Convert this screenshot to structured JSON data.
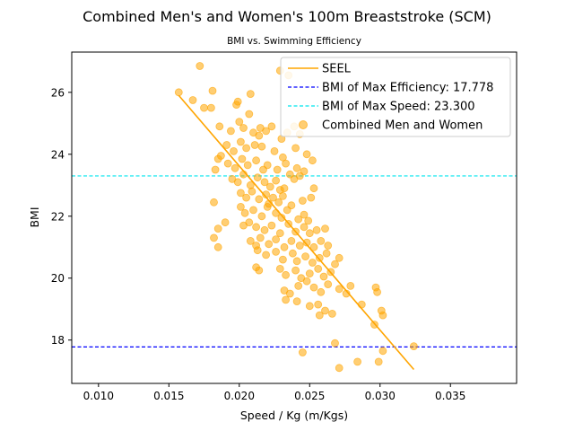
{
  "chart_data": {
    "type": "scatter",
    "title": "Combined Men's and Women's 100m Breaststroke (SCM)",
    "subtitle": "BMI vs. Swimming Efficiency",
    "xlabel": "Speed / Kg (m/Kgs)",
    "ylabel": "BMI",
    "xlim": [
      0.0081,
      0.0397
    ],
    "ylim": [
      16.6,
      27.3
    ],
    "xticks": [
      "0.010",
      "0.015",
      "0.020",
      "0.025",
      "0.030",
      "0.035"
    ],
    "yticks": [
      "18",
      "20",
      "22",
      "24",
      "26"
    ],
    "grid": false,
    "legend_position": "top-right",
    "colors": {
      "points": "#FFA500",
      "seel": "#FFA500",
      "max_efficiency": "#0000FF",
      "max_speed": "#00E5EE"
    },
    "legend": [
      {
        "label": "SEEL",
        "kind": "line",
        "color": "#FFA500",
        "dash": "solid"
      },
      {
        "label": "BMI of Max Efficiency: 17.778",
        "kind": "line",
        "color": "#0000FF",
        "dash": "dashed"
      },
      {
        "label": "BMI of Max Speed: 23.300",
        "kind": "line",
        "color": "#00E5EE",
        "dash": "dashed"
      },
      {
        "label": "Combined Men and Women",
        "kind": "marker",
        "color": "#FFA500"
      }
    ],
    "hlines": [
      {
        "name": "BMI of Max Efficiency",
        "y": 17.778,
        "color": "#0000FF"
      },
      {
        "name": "BMI of Max Speed",
        "y": 23.3,
        "color": "#00E5EE"
      }
    ],
    "seel_line": {
      "x": [
        0.0157,
        0.0324
      ],
      "y": [
        25.9,
        17.05
      ]
    },
    "series": [
      {
        "name": "Combined Men and Women",
        "points": [
          [
            0.0157,
            26.0
          ],
          [
            0.0172,
            26.85
          ],
          [
            0.0167,
            25.75
          ],
          [
            0.0175,
            25.5
          ],
          [
            0.0181,
            26.05
          ],
          [
            0.018,
            25.5
          ],
          [
            0.0198,
            25.6
          ],
          [
            0.0208,
            25.95
          ],
          [
            0.0207,
            25.3
          ],
          [
            0.0199,
            25.7
          ],
          [
            0.0229,
            26.7
          ],
          [
            0.0235,
            26.55
          ],
          [
            0.0186,
            24.9
          ],
          [
            0.0194,
            24.75
          ],
          [
            0.02,
            25.05
          ],
          [
            0.0203,
            24.85
          ],
          [
            0.021,
            24.7
          ],
          [
            0.0214,
            24.6
          ],
          [
            0.0219,
            24.75
          ],
          [
            0.0215,
            24.85
          ],
          [
            0.0223,
            24.9
          ],
          [
            0.023,
            24.5
          ],
          [
            0.0234,
            24.7
          ],
          [
            0.0239,
            24.9
          ],
          [
            0.0243,
            24.65
          ],
          [
            0.0191,
            24.3
          ],
          [
            0.0196,
            24.1
          ],
          [
            0.0201,
            24.4
          ],
          [
            0.0205,
            24.2
          ],
          [
            0.0211,
            24.3
          ],
          [
            0.0216,
            24.25
          ],
          [
            0.0225,
            24.1
          ],
          [
            0.0231,
            23.9
          ],
          [
            0.024,
            24.2
          ],
          [
            0.0248,
            24.0
          ],
          [
            0.0252,
            23.8
          ],
          [
            0.0185,
            23.85
          ],
          [
            0.0187,
            23.95
          ],
          [
            0.0192,
            23.7
          ],
          [
            0.0197,
            23.55
          ],
          [
            0.0202,
            23.85
          ],
          [
            0.0206,
            23.65
          ],
          [
            0.0212,
            23.8
          ],
          [
            0.0217,
            23.5
          ],
          [
            0.022,
            23.65
          ],
          [
            0.0227,
            23.5
          ],
          [
            0.0233,
            23.7
          ],
          [
            0.0236,
            23.35
          ],
          [
            0.0241,
            23.55
          ],
          [
            0.0246,
            23.45
          ],
          [
            0.0183,
            23.5
          ],
          [
            0.0195,
            23.2
          ],
          [
            0.0199,
            23.1
          ],
          [
            0.0203,
            23.35
          ],
          [
            0.0208,
            23.0
          ],
          [
            0.0213,
            23.25
          ],
          [
            0.0218,
            23.1
          ],
          [
            0.0222,
            22.95
          ],
          [
            0.0226,
            23.15
          ],
          [
            0.0229,
            22.85
          ],
          [
            0.0232,
            22.9
          ],
          [
            0.0239,
            23.2
          ],
          [
            0.0243,
            23.3
          ],
          [
            0.0253,
            22.9
          ],
          [
            0.0201,
            22.75
          ],
          [
            0.0205,
            22.6
          ],
          [
            0.0209,
            22.8
          ],
          [
            0.0214,
            22.55
          ],
          [
            0.0219,
            22.7
          ],
          [
            0.0221,
            22.4
          ],
          [
            0.0224,
            22.6
          ],
          [
            0.0228,
            22.45
          ],
          [
            0.0231,
            22.65
          ],
          [
            0.0237,
            22.35
          ],
          [
            0.0245,
            22.5
          ],
          [
            0.0251,
            22.6
          ],
          [
            0.0182,
            22.45
          ],
          [
            0.0201,
            22.3
          ],
          [
            0.0204,
            22.1
          ],
          [
            0.021,
            22.2
          ],
          [
            0.0216,
            22.0
          ],
          [
            0.022,
            22.3
          ],
          [
            0.0226,
            22.1
          ],
          [
            0.023,
            21.95
          ],
          [
            0.0234,
            22.2
          ],
          [
            0.0242,
            21.9
          ],
          [
            0.0246,
            22.05
          ],
          [
            0.0249,
            21.85
          ],
          [
            0.019,
            21.8
          ],
          [
            0.0185,
            21.6
          ],
          [
            0.0203,
            21.7
          ],
          [
            0.0207,
            21.8
          ],
          [
            0.0212,
            21.65
          ],
          [
            0.0218,
            21.55
          ],
          [
            0.0223,
            21.7
          ],
          [
            0.0229,
            21.45
          ],
          [
            0.0235,
            21.75
          ],
          [
            0.024,
            21.5
          ],
          [
            0.0246,
            21.65
          ],
          [
            0.025,
            21.45
          ],
          [
            0.0255,
            21.55
          ],
          [
            0.0261,
            21.6
          ],
          [
            0.0208,
            21.2
          ],
          [
            0.0212,
            21.05
          ],
          [
            0.0215,
            21.3
          ],
          [
            0.0221,
            21.1
          ],
          [
            0.0226,
            21.25
          ],
          [
            0.0232,
            21.0
          ],
          [
            0.0237,
            21.2
          ],
          [
            0.0243,
            21.05
          ],
          [
            0.0248,
            21.15
          ],
          [
            0.0253,
            21.0
          ],
          [
            0.0258,
            21.2
          ],
          [
            0.0263,
            21.05
          ],
          [
            0.0182,
            21.3
          ],
          [
            0.0185,
            21.0
          ],
          [
            0.0213,
            20.9
          ],
          [
            0.0219,
            20.75
          ],
          [
            0.0226,
            20.85
          ],
          [
            0.0231,
            20.6
          ],
          [
            0.0238,
            20.8
          ],
          [
            0.0241,
            20.55
          ],
          [
            0.0247,
            20.7
          ],
          [
            0.0252,
            20.5
          ],
          [
            0.0257,
            20.65
          ],
          [
            0.0262,
            20.8
          ],
          [
            0.0268,
            20.45
          ],
          [
            0.0271,
            20.65
          ],
          [
            0.0212,
            20.35
          ],
          [
            0.0214,
            20.25
          ],
          [
            0.0229,
            20.3
          ],
          [
            0.0233,
            20.1
          ],
          [
            0.024,
            20.25
          ],
          [
            0.0244,
            20.0
          ],
          [
            0.025,
            20.15
          ],
          [
            0.0256,
            20.3
          ],
          [
            0.026,
            20.05
          ],
          [
            0.0265,
            20.2
          ],
          [
            0.0232,
            19.6
          ],
          [
            0.0236,
            19.5
          ],
          [
            0.0242,
            19.75
          ],
          [
            0.0248,
            19.9
          ],
          [
            0.0253,
            19.7
          ],
          [
            0.0258,
            19.55
          ],
          [
            0.0263,
            19.8
          ],
          [
            0.0271,
            19.65
          ],
          [
            0.0276,
            19.5
          ],
          [
            0.0279,
            19.75
          ],
          [
            0.0297,
            19.7
          ],
          [
            0.0298,
            19.55
          ],
          [
            0.0233,
            19.3
          ],
          [
            0.0241,
            19.25
          ],
          [
            0.025,
            19.1
          ],
          [
            0.0256,
            19.15
          ],
          [
            0.0261,
            18.95
          ],
          [
            0.0266,
            18.85
          ],
          [
            0.0257,
            18.8
          ],
          [
            0.0301,
            18.95
          ],
          [
            0.0302,
            18.8
          ],
          [
            0.0296,
            18.5
          ],
          [
            0.0268,
            17.9
          ],
          [
            0.0245,
            17.6
          ],
          [
            0.0271,
            17.1
          ],
          [
            0.0284,
            17.3
          ],
          [
            0.0299,
            17.3
          ],
          [
            0.0302,
            17.65
          ],
          [
            0.0324,
            17.8
          ],
          [
            0.0287,
            19.15
          ]
        ]
      }
    ]
  }
}
